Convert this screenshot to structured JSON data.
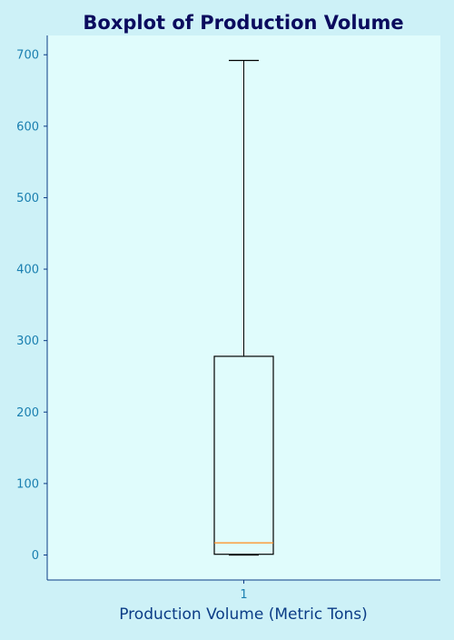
{
  "chart_data": {
    "type": "boxplot",
    "title": "Boxplot of Production Volume",
    "xlabel": "Production Volume (Metric Tons)",
    "ylabel": "",
    "categories": [
      "1"
    ],
    "boxes": [
      {
        "category": "1",
        "whisker_low": 0,
        "q1": 1,
        "median": 17,
        "q3": 278,
        "whisker_high": 692
      }
    ],
    "ylim": [
      -35,
      727
    ],
    "yticks": [
      0,
      100,
      200,
      300,
      400,
      500,
      600,
      700
    ],
    "grid": false,
    "colors": {
      "figure_background": "#cdf1f7",
      "plot_background": "#e0fcfc",
      "title": "#0b0b5e",
      "xlabel": "#0b3c86",
      "ticks": "#1a7fb0",
      "axis_spine": "#0b3c86",
      "box": "#000000",
      "median": "#ff8c1a"
    }
  }
}
